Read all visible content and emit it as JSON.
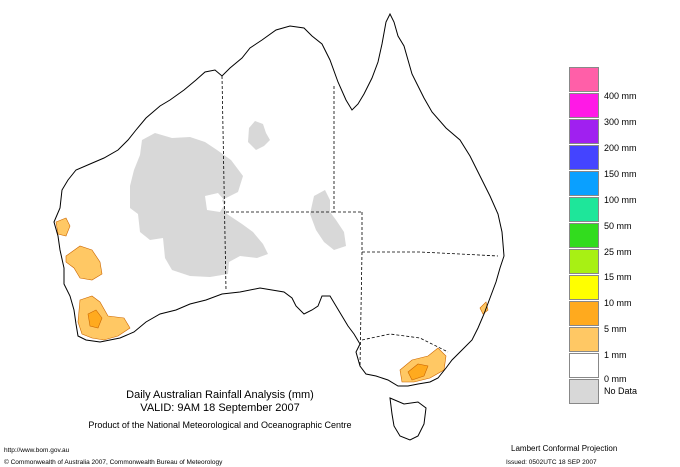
{
  "title": {
    "line1": "Daily Australian Rainfall Analysis (mm)",
    "line2": "VALID: 9AM 18 September 2007",
    "line3": "Product of the National Meteorological and Oceanographic Centre"
  },
  "legend": {
    "items": [
      {
        "label": "400 mm",
        "color": "#ff5fa8"
      },
      {
        "label": "300 mm",
        "color": "#ff19e6"
      },
      {
        "label": "200 mm",
        "color": "#a020f0"
      },
      {
        "label": "150 mm",
        "color": "#4444ff"
      },
      {
        "label": "100 mm",
        "color": "#0aa0ff"
      },
      {
        "label": "50 mm",
        "color": "#1ee69a"
      },
      {
        "label": "25 mm",
        "color": "#32dc1e"
      },
      {
        "label": "15 mm",
        "color": "#a8f014"
      },
      {
        "label": "10 mm",
        "color": "#ffff00"
      },
      {
        "label": "5 mm",
        "color": "#ffaa1e"
      },
      {
        "label": "1 mm",
        "color": "#ffc864"
      },
      {
        "label": "0 mm",
        "color": "#ffffff"
      },
      {
        "label": "No Data",
        "color": "#d8d8d8"
      }
    ]
  },
  "footer": {
    "url": "http://www.bom.gov.au",
    "copyright": "© Commonwealth of Australia 2007, Commonwealth Bureau of Meteorology",
    "projection": "Lambert Conformal Projection",
    "issued": "Issued: 0502UTC 18 SEP 2007"
  },
  "colors": {
    "coast": "#000000",
    "no_data": "#d8d8d8",
    "rain_1mm": "#ffc864",
    "rain_5mm": "#ffaa1e"
  }
}
